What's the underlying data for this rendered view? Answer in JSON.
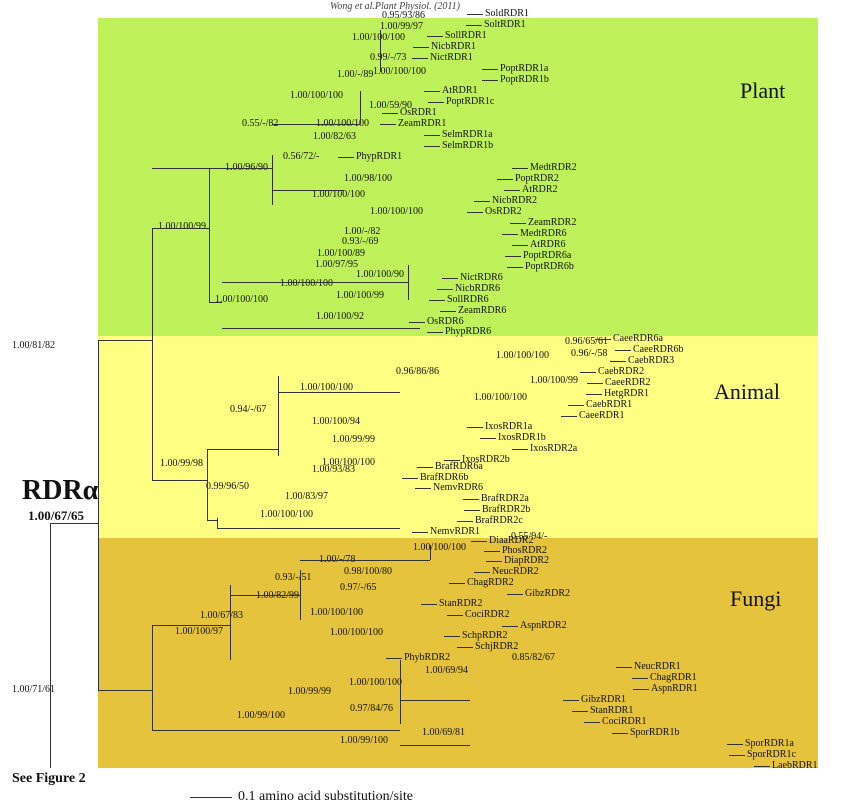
{
  "header": {
    "citation": "Wong et al.Plant Physiol. (2011)"
  },
  "colors": {
    "plant": "#bff25a",
    "animal": "#fefe82",
    "fungi": "#e6c33c",
    "line": "#333333"
  },
  "groups": {
    "plant": "Plant",
    "animal": "Animal",
    "fungi": "Fungi"
  },
  "root": {
    "label": "RDRα",
    "support": "1.00/67/65",
    "link": "See Figure 2"
  },
  "scale_bar": {
    "label": "0.1 amino acid substitution/site"
  },
  "leaves": [
    "SoldRDR1",
    "SoltRDR1",
    "SollRDR1",
    "NicbRDR1",
    "NictRDR1",
    "PoptRDR1a",
    "PoptRDR1b",
    "AtRDR1",
    "PoptRDR1c",
    "OsRDR1",
    "ZeamRDR1",
    "SelmRDR1a",
    "SelmRDR1b",
    "PhypRDR1",
    "MedtRDR2",
    "PoptRDR2",
    "AtRDR2",
    "NicbRDR2",
    "OsRDR2",
    "ZeamRDR2",
    "MedtRDR6",
    "AtRDR6",
    "PoptRDR6a",
    "PoptRDR6b",
    "NictRDR6",
    "NicbRDR6",
    "SollRDR6",
    "ZeamRDR6",
    "OsRDR6",
    "PhypRDR6",
    "CaeeRDR6a",
    "CaeeRDR6b",
    "CaebRDR3",
    "CaebRDR2",
    "CaeeRDR2",
    "HetgRDR1",
    "CaebRDR1",
    "CaeeRDR1",
    "IxosRDR1a",
    "IxosRDR1b",
    "IxosRDR2a",
    "IxosRDR2b",
    "BrafRDR6a",
    "BrafRDR6b",
    "NemvRDR6",
    "BrafRDR2a",
    "BrafRDR2b",
    "BrafRDR2c",
    "NemvRDR1",
    "DiaaRDR2",
    "PhosRDR2",
    "DiapRDR2",
    "NeucRDR2",
    "ChagRDR2",
    "GibzRDR2",
    "StanRDR2",
    "CociRDR2",
    "AspnRDR2",
    "SchpRDR2",
    "SchjRDR2",
    "PhybRDR2",
    "NeucRDR1",
    "ChagRDR1",
    "AspnRDR1",
    "GibzRDR1",
    "StanRDR1",
    "CociRDR1",
    "SporRDR1b",
    "SporRDR1a",
    "SporRDR1c",
    "LaebRDR1"
  ],
  "supports": [
    "0.95/93/86",
    "1.00/99/97",
    "1.00/100/100",
    "0.99/-/73",
    "1.00/-/89",
    "1.00/100/100",
    "1.00/100/100",
    "1.00/59/90",
    "0.55/-/82",
    "1.00/100/100",
    "1.00/82/63",
    "0.56/72/-",
    "1.00/96/90",
    "1.00/98/100",
    "1.00/100/100",
    "1.00/100/100",
    "1.00/100/99",
    "1.00/-/82",
    "0.93/-/69",
    "1.00/100/89",
    "1.00/97/95",
    "1.00/100/90",
    "1.00/100/100",
    "1.00/100/99",
    "1.00/100/100",
    "1.00/100/92",
    "1.00/81/82",
    "0.96/65/61",
    "0.96/-/58",
    "1.00/100/100",
    "0.96/86/86",
    "1.00/100/99",
    "1.00/100/100",
    "1.00/100/100",
    "0.94/-/67",
    "1.00/100/94",
    "1.00/99/99",
    "1.00/99/98",
    "1.00/93/83",
    "1.00/100/100",
    "0.99/96/50",
    "1.00/83/97",
    "1.00/100/100",
    "0.55/94/-",
    "1.00/100/100",
    "1.00/-/78",
    "0.98/100/80",
    "0.93/-/51",
    "0.97/-/65",
    "1.00/82/99",
    "1.00/67/83",
    "1.00/100/100",
    "1.00/100/100",
    "1.00/100/97",
    "0.85/82/67",
    "1.00/69/94",
    "1.00/100/100",
    "1.00/99/99",
    "0.97/84/76",
    "1.00/71/61",
    "1.00/99/100",
    "1.00/69/81",
    "1.00/99/100"
  ]
}
